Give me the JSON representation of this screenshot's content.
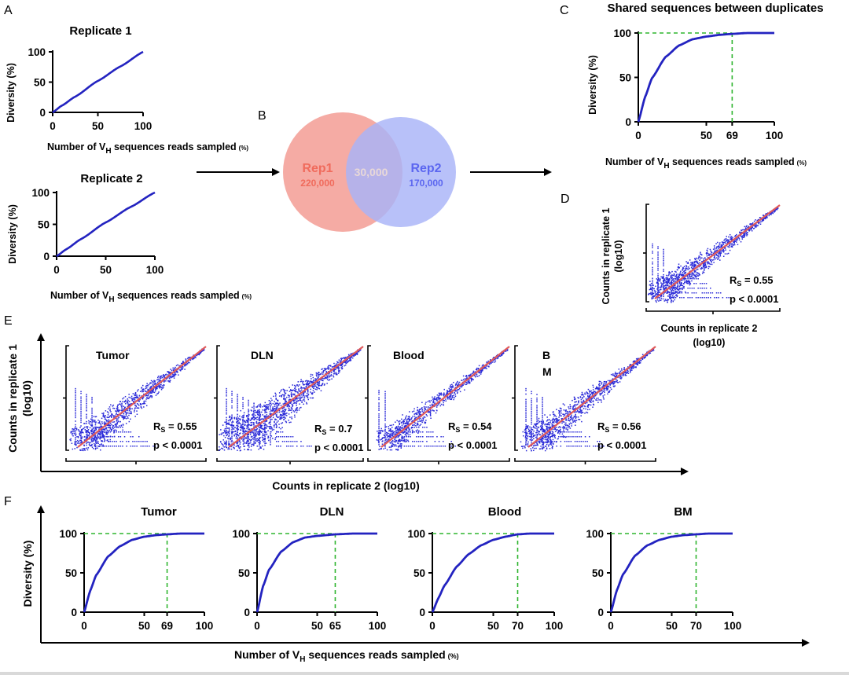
{
  "panel_letters": {
    "a": "A",
    "b": "B",
    "c": "C",
    "d": "D",
    "e": "E",
    "f": "F"
  },
  "colors": {
    "curve": "#2323c0",
    "points": "#2a2ad8",
    "fit": "#e05a5a",
    "guide": "#2fb52f",
    "rep1": "#f4a29a",
    "rep2": "#a8b3f8",
    "rep1_text": "#f06b5c",
    "rep2_text": "#5b66f0",
    "overlap_text": "#e8d8d8"
  },
  "rarefaction_axis": {
    "ylabel": "Diversity (%)",
    "xlabel_main": "Number of V",
    "xlabel_sub": "H",
    "xlabel_rest": " sequences reads  sampled",
    "xlabel_unit": "(%)"
  },
  "venn": {
    "rep1_label": "Rep1",
    "rep1_value": "220,000",
    "rep2_label": "Rep2",
    "rep2_value": "170,000",
    "overlap_value": "30,000"
  },
  "scatter_axis": {
    "ylabel_line1": "Counts in replicate 1",
    "ylabel_line2": "(log10)",
    "xlabel_line1": "Counts in replicate 2",
    "xlabel_line2": "(log10)",
    "e_xlabel": "Counts in replicate 2 (log10)"
  },
  "stat_prefix": "R",
  "stat_sub": "S",
  "chart_data": [
    {
      "id": "A1",
      "type": "line",
      "title": "Replicate 1",
      "xlabel": "Number of VH sequences reads  sampled (%)",
      "ylabel": "Diversity (%)",
      "xlim": [
        0,
        100
      ],
      "ylim": [
        0,
        100
      ],
      "xticks": [
        "0",
        "50",
        "100"
      ],
      "yticks": [
        "0",
        "50",
        "100"
      ],
      "series": [
        {
          "x": [
            0,
            10,
            25,
            50,
            75,
            100
          ],
          "y": [
            0,
            11,
            26,
            52,
            76,
            100
          ]
        }
      ]
    },
    {
      "id": "A2",
      "type": "line",
      "title": "Replicate 2",
      "xlabel": "Number of VH sequences reads  sampled (%)",
      "ylabel": "Diversity (%)",
      "xlim": [
        0,
        100
      ],
      "ylim": [
        0,
        100
      ],
      "xticks": [
        "0",
        "50",
        "100"
      ],
      "yticks": [
        "0",
        "50",
        "100"
      ],
      "series": [
        {
          "x": [
            0,
            10,
            25,
            50,
            75,
            100
          ],
          "y": [
            0,
            11,
            27,
            53,
            77,
            100
          ]
        }
      ]
    },
    {
      "id": "C",
      "type": "line",
      "title": "Shared sequences between duplicates",
      "xlabel": "Number of VH sequences reads  sampled (%)",
      "ylabel": "Diversity (%)",
      "xlim": [
        0,
        100
      ],
      "ylim": [
        0,
        100
      ],
      "xticks": [
        "0",
        "50",
        "69",
        "100"
      ],
      "yticks": [
        "0",
        "50",
        "100"
      ],
      "saturation_x": 69,
      "series": [
        {
          "x": [
            0,
            5,
            10,
            20,
            30,
            40,
            50,
            60,
            69,
            80,
            100
          ],
          "y": [
            0,
            28,
            49,
            73,
            86,
            93,
            96,
            98,
            99,
            100,
            100
          ]
        }
      ]
    },
    {
      "id": "D",
      "type": "scatter",
      "rs": "= 0.55",
      "p": "p < 0.0001"
    },
    {
      "id": "E-Tumor",
      "type": "scatter",
      "label": "Tumor",
      "rs": "= 0.55",
      "p": "p < 0.0001"
    },
    {
      "id": "E-DLN",
      "type": "scatter",
      "label": "DLN",
      "rs": "= 0.7",
      "p": "p < 0.0001"
    },
    {
      "id": "E-Blood",
      "type": "scatter",
      "label": "Blood",
      "rs": "= 0.54",
      "p": "p < 0.0001"
    },
    {
      "id": "E-BM",
      "type": "scatter",
      "label_line1": "B",
      "label_line2": "M",
      "rs": "= 0.56",
      "p": "p < 0.0001"
    },
    {
      "id": "F-Tumor",
      "type": "line",
      "title": "Tumor",
      "xlim": [
        0,
        100
      ],
      "ylim": [
        0,
        100
      ],
      "xticks": [
        "0",
        "50",
        "69",
        "100"
      ],
      "yticks": [
        "0",
        "50",
        "100"
      ],
      "saturation_x": 69,
      "series": [
        {
          "x": [
            0,
            5,
            10,
            20,
            30,
            40,
            50,
            60,
            69,
            80,
            100
          ],
          "y": [
            0,
            27,
            47,
            71,
            84,
            92,
            96,
            98,
            99,
            100,
            100
          ]
        }
      ]
    },
    {
      "id": "F-DLN",
      "type": "line",
      "title": "DLN",
      "xlim": [
        0,
        100
      ],
      "ylim": [
        0,
        100
      ],
      "xticks": [
        "0",
        "50",
        "65",
        "100"
      ],
      "yticks": [
        "0",
        "50",
        "100"
      ],
      "saturation_x": 65,
      "series": [
        {
          "x": [
            0,
            5,
            10,
            20,
            30,
            40,
            50,
            65,
            80,
            100
          ],
          "y": [
            0,
            33,
            54,
            77,
            89,
            95,
            97,
            99,
            100,
            100
          ]
        }
      ]
    },
    {
      "id": "F-Blood",
      "type": "line",
      "title": "Blood",
      "xlim": [
        0,
        100
      ],
      "ylim": [
        0,
        100
      ],
      "xticks": [
        "0",
        "50",
        "70",
        "100"
      ],
      "yticks": [
        "0",
        "50",
        "100"
      ],
      "saturation_x": 70,
      "series": [
        {
          "x": [
            0,
            5,
            10,
            20,
            30,
            40,
            50,
            60,
            70,
            80,
            100
          ],
          "y": [
            0,
            18,
            34,
            58,
            74,
            85,
            92,
            96,
            99,
            100,
            100
          ]
        }
      ]
    },
    {
      "id": "F-BM",
      "type": "line",
      "title": "BM",
      "xlim": [
        0,
        100
      ],
      "ylim": [
        0,
        100
      ],
      "xticks": [
        "0",
        "50",
        "70",
        "100"
      ],
      "yticks": [
        "0",
        "50",
        "100"
      ],
      "saturation_x": 70,
      "series": [
        {
          "x": [
            0,
            5,
            10,
            20,
            30,
            40,
            50,
            60,
            70,
            80,
            100
          ],
          "y": [
            0,
            28,
            48,
            72,
            85,
            92,
            96,
            98,
            99,
            100,
            100
          ]
        }
      ]
    }
  ]
}
